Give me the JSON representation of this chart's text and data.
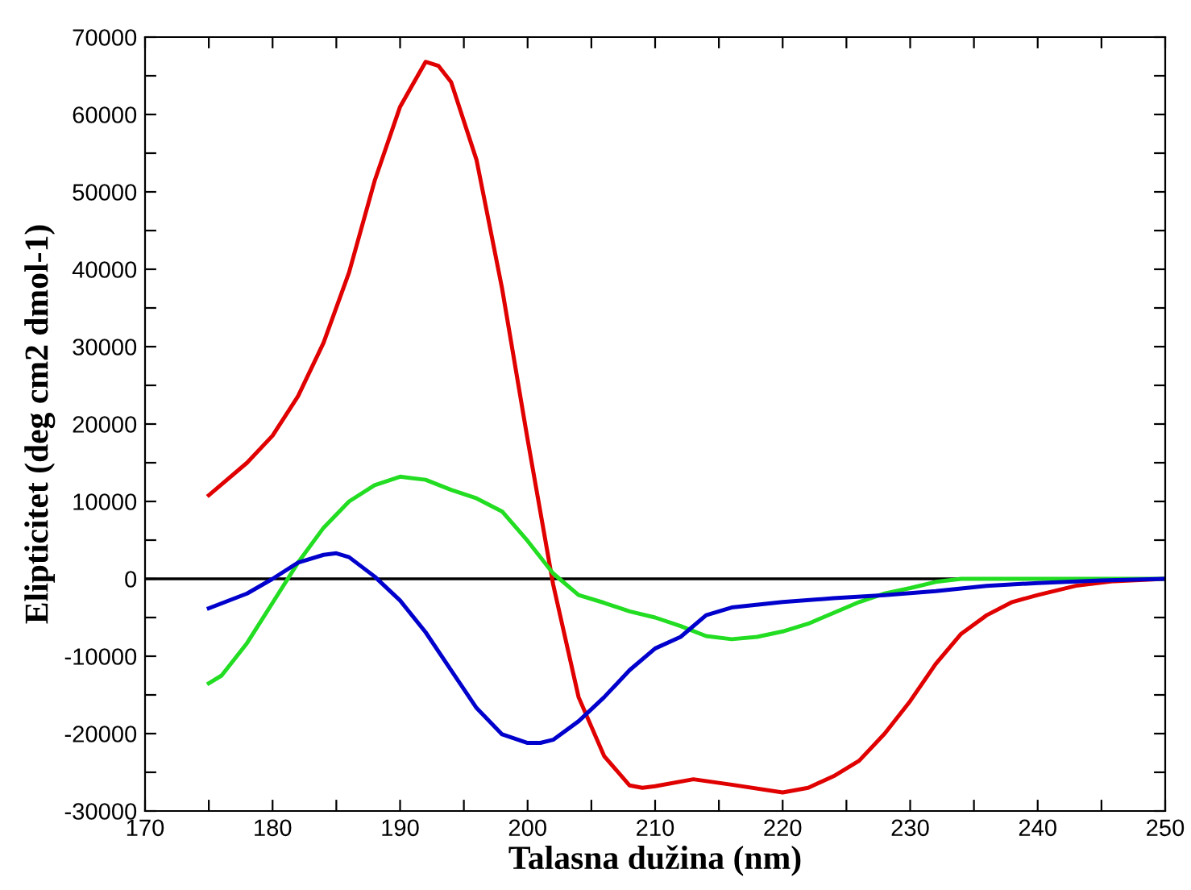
{
  "chart_data": {
    "type": "line",
    "xlabel": "Talasna dužina (nm)",
    "ylabel": "Elipticitet (deg cm2 dmol-1)",
    "xlim": [
      170,
      250
    ],
    "ylim": [
      -30000,
      70000
    ],
    "xticks": [
      170,
      {
        "value": 175,
        "label": null
      },
      180,
      {
        "value": 185,
        "label": null
      },
      190,
      {
        "value": 195,
        "label": null
      },
      200,
      {
        "value": 205,
        "label": null
      },
      210,
      {
        "value": 215,
        "label": null
      },
      220,
      {
        "value": 225,
        "label": null
      },
      230,
      {
        "value": 235,
        "label": null
      },
      240,
      {
        "value": 245,
        "label": null
      },
      250
    ],
    "yticks": [
      -30000,
      {
        "value": -25000,
        "label": null
      },
      -20000,
      {
        "value": -15000,
        "label": null
      },
      -10000,
      {
        "value": -5000,
        "label": null
      },
      0,
      {
        "value": 5000,
        "label": null
      },
      10000,
      {
        "value": 15000,
        "label": null
      },
      20000,
      {
        "value": 25000,
        "label": null
      },
      30000,
      {
        "value": 35000,
        "label": null
      },
      40000,
      {
        "value": 45000,
        "label": null
      },
      50000,
      {
        "value": 55000,
        "label": null
      },
      60000,
      {
        "value": 65000,
        "label": null
      },
      70000
    ],
    "grid": false,
    "marker": "none",
    "line_style": "solid",
    "ref_lines": [
      {
        "axis": "y",
        "value": 0,
        "color": "#000000"
      }
    ],
    "series": [
      {
        "color": "#e00000",
        "x": [
          175,
          178,
          180,
          182,
          184,
          186,
          188,
          190,
          192,
          193,
          194,
          196,
          198,
          200,
          202,
          204,
          206,
          208,
          209,
          210,
          213,
          216,
          220,
          222,
          224,
          226,
          228,
          230,
          232,
          234,
          236,
          238,
          240,
          243,
          246,
          250
        ],
        "values": [
          10800,
          15000,
          18500,
          23600,
          30500,
          39600,
          51400,
          61000,
          66800,
          66300,
          64200,
          54100,
          37500,
          18000,
          -700,
          -15300,
          -22900,
          -26700,
          -27000,
          -26800,
          -25900,
          -26600,
          -27600,
          -27000,
          -25500,
          -23500,
          -20000,
          -15800,
          -11000,
          -7100,
          -4700,
          -3000,
          -2100,
          -900,
          -300,
          0
        ]
      },
      {
        "color": "#22dd22",
        "x": [
          175,
          176,
          178,
          180,
          182,
          184,
          186,
          188,
          190,
          192,
          194,
          196,
          198,
          200,
          202,
          204,
          206,
          208,
          210,
          212,
          214,
          216,
          218,
          220,
          222,
          224,
          226,
          228,
          230,
          232,
          234,
          240,
          250
        ],
        "values": [
          -13500,
          -12500,
          -8300,
          -3100,
          2100,
          6600,
          10000,
          12100,
          13200,
          12800,
          11500,
          10400,
          8700,
          4900,
          700,
          -2100,
          -3100,
          -4200,
          -5000,
          -6100,
          -7400,
          -7800,
          -7500,
          -6800,
          -5800,
          -4400,
          -3000,
          -1900,
          -1200,
          -400,
          0,
          0,
          0
        ]
      },
      {
        "color": "#0000cc",
        "x": [
          175,
          178,
          180,
          182,
          184,
          185,
          186,
          188,
          190,
          192,
          194,
          196,
          198,
          200,
          201,
          202,
          204,
          206,
          208,
          210,
          212,
          214,
          216,
          220,
          224,
          228,
          232,
          236,
          240,
          245,
          250
        ],
        "values": [
          -3800,
          -1900,
          0,
          2100,
          3100,
          3300,
          2800,
          300,
          -2800,
          -6900,
          -11800,
          -16700,
          -20100,
          -21200,
          -21200,
          -20800,
          -18400,
          -15300,
          -11800,
          -9000,
          -7500,
          -4700,
          -3700,
          -3000,
          -2500,
          -2100,
          -1600,
          -900,
          -550,
          -200,
          0
        ]
      }
    ]
  }
}
